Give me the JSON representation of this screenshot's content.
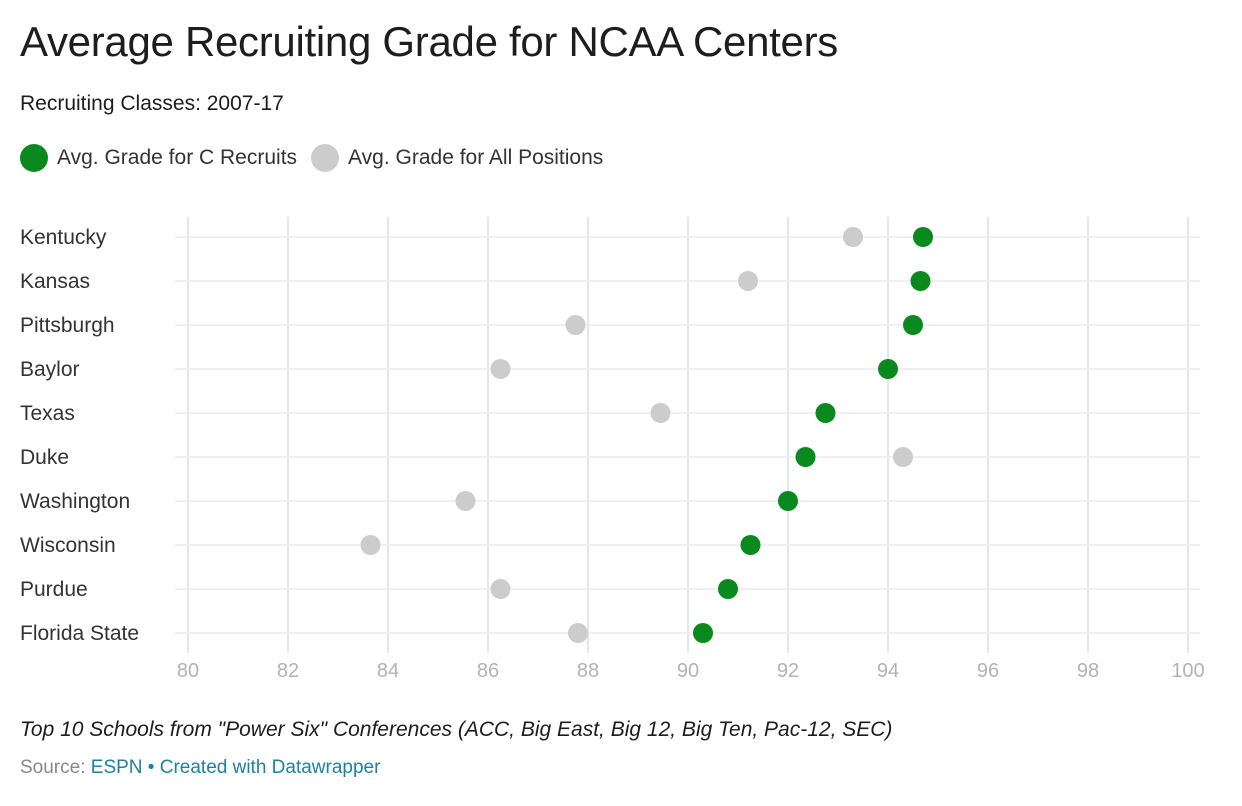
{
  "title": "Average Recruiting Grade for NCAA Centers",
  "subtitle": "Recruiting Classes: 2007-17",
  "legend": [
    {
      "label": "Avg. Grade for C Recruits",
      "color": "#0a8a1e"
    },
    {
      "label": "Avg. Grade for All Positions",
      "color": "#cccccc"
    }
  ],
  "notes": "Top 10 Schools from \"Power Six\" Conferences (ACC, Big East, Big 12, Big Ten, Pac-12, SEC)",
  "footer": {
    "source_label": "Source:",
    "source_link": "ESPN",
    "separator": "•",
    "credit_link": "Created with Datawrapper"
  },
  "chart_data": {
    "type": "scatter",
    "xlim": [
      80,
      100
    ],
    "xticks": [
      80,
      82,
      84,
      86,
      88,
      90,
      92,
      94,
      96,
      98,
      100
    ],
    "grid": true,
    "legend_position": "top-left",
    "categories": [
      "Kentucky",
      "Kansas",
      "Pittsburgh",
      "Baylor",
      "Texas",
      "Duke",
      "Washington",
      "Wisconsin",
      "Purdue",
      "Florida State"
    ],
    "series": [
      {
        "name": "Avg. Grade for C Recruits",
        "color": "#0a8a1e",
        "values": [
          94.7,
          94.65,
          94.5,
          94.0,
          92.75,
          92.35,
          92.0,
          91.25,
          90.8,
          90.3
        ]
      },
      {
        "name": "Avg. Grade for All Positions",
        "color": "#cccccc",
        "values": [
          93.3,
          91.2,
          87.75,
          86.25,
          89.45,
          94.3,
          85.55,
          83.65,
          86.25,
          87.8
        ]
      }
    ]
  }
}
